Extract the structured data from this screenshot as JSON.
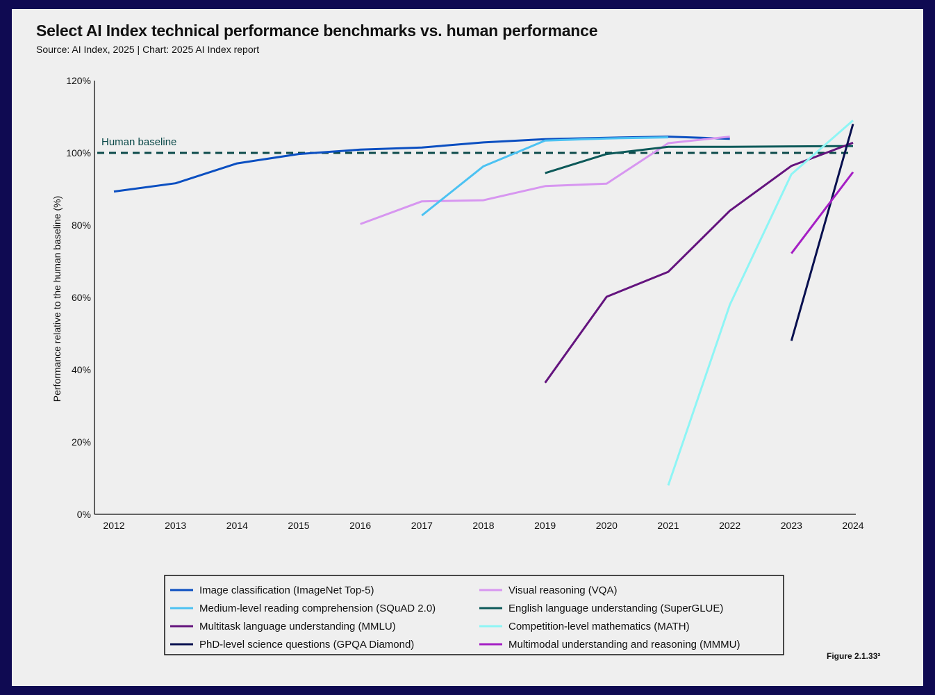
{
  "figure_label": "Figure 2.1.33²",
  "chart_data": {
    "type": "line",
    "title": "Select AI Index technical performance benchmarks vs. human performance",
    "subtitle": "Source: AI Index, 2025 | Chart: 2025 AI Index report",
    "xlabel": "",
    "ylabel": "Performance relative to the human baseline (%)",
    "xlim": [
      2012,
      2024
    ],
    "ylim": [
      0,
      120
    ],
    "x_ticks": [
      "2012",
      "2013",
      "2014",
      "2015",
      "2016",
      "2017",
      "2018",
      "2019",
      "2020",
      "2021",
      "2022",
      "2023",
      "2024"
    ],
    "y_ticks": [
      "0%",
      "20%",
      "40%",
      "60%",
      "80%",
      "100%",
      "120%"
    ],
    "baseline": {
      "label": "Human baseline",
      "value": 100,
      "color": "#0c4a4a"
    },
    "legend_position": "bottom",
    "series": [
      {
        "name": "Image classification (ImageNet Top-5)",
        "color": "#0b4fc1",
        "x": [
          2012,
          2013,
          2014,
          2015,
          2016,
          2017,
          2018,
          2019,
          2020,
          2021,
          2022
        ],
        "y": [
          89.3,
          91.6,
          97.1,
          99.7,
          100.9,
          101.5,
          102.9,
          103.8,
          104.2,
          104.5,
          103.9
        ]
      },
      {
        "name": "Visual reasoning (VQA)",
        "color": "#d796f0",
        "x": [
          2016,
          2017,
          2018,
          2019,
          2020,
          2021,
          2022
        ],
        "y": [
          80.3,
          86.6,
          86.9,
          90.8,
          91.5,
          102.7,
          104.5
        ]
      },
      {
        "name": "Medium-level reading comprehension (SQuAD 2.0)",
        "color": "#4cc2f2",
        "x": [
          2017,
          2018,
          2019,
          2020,
          2021
        ],
        "y": [
          82.7,
          96.3,
          103.4,
          104.0,
          104.3
        ]
      },
      {
        "name": "English language understanding (SuperGLUE)",
        "color": "#0d5959",
        "x": [
          2019,
          2020,
          2021,
          2022,
          2023,
          2024
        ],
        "y": [
          94.4,
          99.7,
          101.7,
          101.7,
          101.8,
          101.9
        ]
      },
      {
        "name": "Multitask language understanding (MMLU)",
        "color": "#64147e",
        "x": [
          2019,
          2020,
          2021,
          2022,
          2023,
          2024
        ],
        "y": [
          36.4,
          60.2,
          67.1,
          84.0,
          96.4,
          102.8
        ]
      },
      {
        "name": "Competition-level mathematics (MATH)",
        "color": "#8ef5f5",
        "x": [
          2021,
          2022,
          2023,
          2024
        ],
        "y": [
          8.0,
          58.0,
          94.1,
          109.0
        ]
      },
      {
        "name": "PhD-level science questions (GPQA Diamond)",
        "color": "#08104f",
        "x": [
          2023,
          2024
        ],
        "y": [
          48.0,
          108.0
        ]
      },
      {
        "name": "Multimodal understanding and reasoning (MMMU)",
        "color": "#a51fc4",
        "x": [
          2023,
          2024
        ],
        "y": [
          72.2,
          94.7
        ]
      }
    ]
  }
}
